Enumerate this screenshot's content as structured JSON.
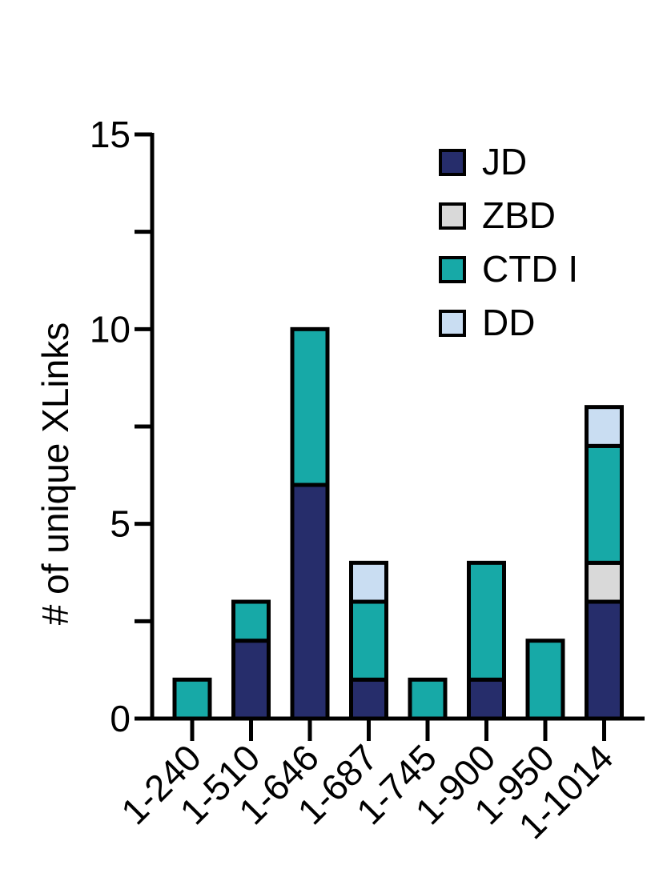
{
  "chart_data": {
    "type": "bar",
    "stacked": true,
    "categories": [
      "1-240",
      "1-510",
      "1-646",
      "1-687",
      "1-745",
      "1-900",
      "1-950",
      "1-1014"
    ],
    "series": [
      {
        "name": "JD",
        "color": "#262D6B",
        "values": [
          0,
          2,
          6,
          1,
          0,
          1,
          0,
          3
        ]
      },
      {
        "name": "ZBD",
        "color": "#D9D9D9",
        "values": [
          0,
          0,
          0,
          0,
          0,
          0,
          0,
          1
        ]
      },
      {
        "name": "CTD I",
        "color": "#17A9A7",
        "values": [
          1,
          1,
          4,
          2,
          1,
          3,
          2,
          3
        ]
      },
      {
        "name": "DD",
        "color": "#C9DDF2",
        "values": [
          0,
          0,
          0,
          1,
          0,
          0,
          0,
          1
        ]
      }
    ],
    "ylabel": "# of unique XLinks",
    "xlabel": "",
    "title": "",
    "ylim": [
      0,
      15
    ],
    "yticks": [
      "0",
      "5",
      "10",
      "15"
    ],
    "grid": false,
    "legend_position": "top-right"
  }
}
